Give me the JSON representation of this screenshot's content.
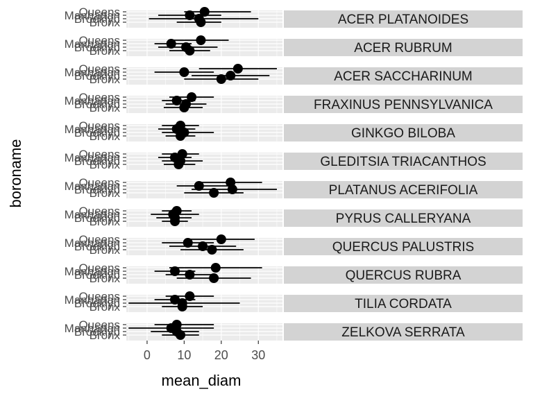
{
  "chart_data": {
    "type": "scatter",
    "xlabel": "mean_diam",
    "ylabel": "boroname",
    "x_ticks": [
      0,
      10,
      20,
      30
    ],
    "xlim": [
      -5.6,
      36.5
    ],
    "y_tick_labels": [
      "Queens",
      "Manhattan",
      "Brooklyn",
      "Bronx"
    ],
    "grid": true,
    "facet_strip_color": "#d3d3d3",
    "panel_bg_color": "#ebebeb",
    "point_color": "#000000",
    "facets": [
      {
        "label": "ACER PLATANOIDES",
        "rows": [
          {
            "borough": "Queens",
            "mean": 15.5,
            "low": 10,
            "high": 28
          },
          {
            "borough": "Manhattan",
            "mean": 11.5,
            "low": 3,
            "high": 20
          },
          {
            "borough": "Brooklyn",
            "mean": 14,
            "low": 0.5,
            "high": 30
          },
          {
            "borough": "Bronx",
            "mean": 14.5,
            "low": 8,
            "high": 20
          }
        ]
      },
      {
        "label": "ACER RUBRUM",
        "rows": [
          {
            "borough": "Queens",
            "mean": 14.5,
            "low": 7,
            "high": 22
          },
          {
            "borough": "Manhattan",
            "mean": 6.5,
            "low": 2,
            "high": 12
          },
          {
            "borough": "Brooklyn",
            "mean": 10.5,
            "low": 3,
            "high": 19
          },
          {
            "borough": "Bronx",
            "mean": 11.5,
            "low": 6,
            "high": 17
          }
        ]
      },
      {
        "label": "ACER SACCHARINUM",
        "rows": [
          {
            "borough": "Queens",
            "mean": 24.5,
            "low": 14,
            "high": 35
          },
          {
            "borough": "Manhattan",
            "mean": 10,
            "low": 2,
            "high": 18
          },
          {
            "borough": "Brooklyn",
            "mean": 22.5,
            "low": 12,
            "high": 33
          },
          {
            "borough": "Bronx",
            "mean": 20,
            "low": 10,
            "high": 30
          }
        ]
      },
      {
        "label": "FRAXINUS PENNSYLVANICA",
        "rows": [
          {
            "borough": "Queens",
            "mean": 12,
            "low": 6,
            "high": 18
          },
          {
            "borough": "Manhattan",
            "mean": 8,
            "low": 4,
            "high": 13
          },
          {
            "borough": "Brooklyn",
            "mean": 10.5,
            "low": 5,
            "high": 16
          },
          {
            "borough": "Bronx",
            "mean": 10,
            "low": 4.5,
            "high": 15
          }
        ]
      },
      {
        "label": "GINKGO BILOBA",
        "rows": [
          {
            "borough": "Queens",
            "mean": 9,
            "low": 4,
            "high": 14
          },
          {
            "borough": "Manhattan",
            "mean": 8,
            "low": 3,
            "high": 13
          },
          {
            "borough": "Brooklyn",
            "mean": 10,
            "low": 4,
            "high": 18
          },
          {
            "borough": "Bronx",
            "mean": 9,
            "low": 5,
            "high": 13
          }
        ]
      },
      {
        "label": "GLEDITSIA TRIACANTHOS",
        "rows": [
          {
            "borough": "Queens",
            "mean": 9.5,
            "low": 4,
            "high": 14
          },
          {
            "borough": "Manhattan",
            "mean": 7.5,
            "low": 3,
            "high": 12
          },
          {
            "borough": "Brooklyn",
            "mean": 9,
            "low": 4,
            "high": 15
          },
          {
            "borough": "Bronx",
            "mean": 8.5,
            "low": 4.5,
            "high": 13
          }
        ]
      },
      {
        "label": "PLATANUS ACERIFOLIA",
        "rows": [
          {
            "borough": "Queens",
            "mean": 22.5,
            "low": 14,
            "high": 31
          },
          {
            "borough": "Manhattan",
            "mean": 14,
            "low": 8,
            "high": 22
          },
          {
            "borough": "Brooklyn",
            "mean": 23,
            "low": 12,
            "high": 35
          },
          {
            "borough": "Bronx",
            "mean": 18,
            "low": 10,
            "high": 26
          }
        ]
      },
      {
        "label": "PYRUS CALLERYANA",
        "rows": [
          {
            "borough": "Queens",
            "mean": 8,
            "low": 4,
            "high": 12
          },
          {
            "borough": "Manhattan",
            "mean": 7,
            "low": 1,
            "high": 14
          },
          {
            "borough": "Brooklyn",
            "mean": 7.5,
            "low": 2.5,
            "high": 12
          },
          {
            "borough": "Bronx",
            "mean": 7.5,
            "low": 4,
            "high": 11
          }
        ]
      },
      {
        "label": "QUERCUS PALUSTRIS",
        "rows": [
          {
            "borough": "Queens",
            "mean": 20,
            "low": 11,
            "high": 29
          },
          {
            "borough": "Manhattan",
            "mean": 11,
            "low": 4,
            "high": 18
          },
          {
            "borough": "Brooklyn",
            "mean": 15,
            "low": 6,
            "high": 24
          },
          {
            "borough": "Bronx",
            "mean": 17.5,
            "low": 9,
            "high": 26
          }
        ]
      },
      {
        "label": "QUERCUS RUBRA",
        "rows": [
          {
            "borough": "Queens",
            "mean": 18.5,
            "low": 6,
            "high": 31
          },
          {
            "borough": "Manhattan",
            "mean": 7.5,
            "low": 2,
            "high": 13
          },
          {
            "borough": "Brooklyn",
            "mean": 11.5,
            "low": 5,
            "high": 18
          },
          {
            "borough": "Bronx",
            "mean": 18,
            "low": 8,
            "high": 28
          }
        ]
      },
      {
        "label": "TILIA CORDATA",
        "rows": [
          {
            "borough": "Queens",
            "mean": 11.5,
            "low": 5,
            "high": 18
          },
          {
            "borough": "Manhattan",
            "mean": 7.5,
            "low": 2,
            "high": 13
          },
          {
            "borough": "Brooklyn",
            "mean": 9.5,
            "low": -5,
            "high": 25
          },
          {
            "borough": "Bronx",
            "mean": 9.5,
            "low": 4,
            "high": 15
          }
        ]
      },
      {
        "label": "ZELKOVA SERRATA",
        "rows": [
          {
            "borough": "Queens",
            "mean": 8,
            "low": 2,
            "high": 18
          },
          {
            "borough": "Manhattan",
            "mean": 6.5,
            "low": -5,
            "high": 18
          },
          {
            "borough": "Brooklyn",
            "mean": 8,
            "low": 1,
            "high": 14
          },
          {
            "borough": "Bronx",
            "mean": 9,
            "low": 4,
            "high": 14
          }
        ]
      }
    ]
  }
}
